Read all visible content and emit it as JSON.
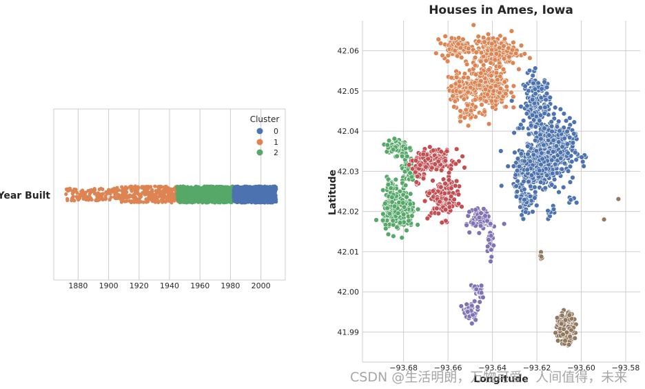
{
  "watermark": "CSDN @生活明朗，万物可爱，人间值得，未来",
  "chart_data": [
    {
      "type": "strip",
      "title": "",
      "ylabel": "Year Built",
      "xlim": [
        1864,
        2016
      ],
      "xticks": [
        1880,
        1900,
        1920,
        1940,
        1960,
        1980,
        2000
      ],
      "grid": true,
      "legend": {
        "title": "Cluster",
        "placement": "top-right",
        "entries": [
          {
            "label": "0",
            "color": "#4c72b0"
          },
          {
            "label": "1",
            "color": "#dd8452"
          },
          {
            "label": "2",
            "color": "#55a868"
          }
        ]
      },
      "series": [
        {
          "cluster": "1",
          "color": "#dd8452",
          "range": [
            1872,
            1950
          ],
          "approx_count": 420
        },
        {
          "cluster": "2",
          "color": "#55a868",
          "range": [
            1945,
            1982
          ],
          "approx_count": 700
        },
        {
          "cluster": "0",
          "color": "#4c72b0",
          "range": [
            1982,
            2010
          ],
          "approx_count": 760
        }
      ]
    },
    {
      "type": "scatter",
      "title": "Houses in Ames, Iowa",
      "xlabel": "Longitude",
      "ylabel": "Latitude",
      "xlim": [
        -93.6985,
        -93.5735
      ],
      "ylim": [
        41.9825,
        42.0675
      ],
      "xticks": [
        -93.68,
        -93.66,
        -93.64,
        -93.62,
        -93.6,
        -93.58
      ],
      "xtick_labels": [
        "−93.68",
        "−93.66",
        "−93.64",
        "−93.62",
        "−93.60",
        "−93.58"
      ],
      "yticks": [
        41.99,
        42.0,
        42.01,
        42.02,
        42.03,
        42.04,
        42.05,
        42.06
      ],
      "ytick_labels": [
        "41.99",
        "42.00",
        "42.01",
        "42.02",
        "42.03",
        "42.04",
        "42.05",
        "42.06"
      ],
      "grid": true,
      "clusters": [
        {
          "color": "#4c72b0",
          "blobs": [
            [
              -93.62,
              42.047,
              0.005,
              0.006,
              160
            ],
            [
              -93.614,
              42.035,
              0.009,
              0.006,
              420
            ],
            [
              -93.622,
              42.03,
              0.007,
              0.004,
              200
            ],
            [
              -93.625,
              42.023,
              0.003,
              0.003,
              60
            ],
            [
              -93.614,
              42.02,
              0.002,
              0.0015,
              10
            ],
            [
              -93.604,
              42.0226,
              0.002,
              0.0008,
              5
            ]
          ]
        },
        {
          "color": "#dd8452",
          "blobs": [
            [
              -93.657,
              42.061,
              0.005,
              0.002,
              90
            ],
            [
              -93.639,
              42.06,
              0.008,
              0.003,
              220
            ],
            [
              -93.642,
              42.051,
              0.008,
              0.005,
              260
            ],
            [
              -93.655,
              42.051,
              0.004,
              0.003,
              70
            ],
            [
              -93.652,
              42.045,
              0.003,
              0.002,
              40
            ]
          ]
        },
        {
          "color": "#55a868",
          "blobs": [
            [
              -93.683,
              42.036,
              0.004,
              0.002,
              70
            ],
            [
              -93.678,
              42.03,
              0.003,
              0.003,
              40
            ],
            [
              -93.682,
              42.02,
              0.006,
              0.004,
              200
            ],
            [
              -93.686,
              42.025,
              0.002,
              0.003,
              40
            ]
          ]
        },
        {
          "color": "#c44e52",
          "blobs": [
            [
              -93.666,
              42.033,
              0.007,
              0.002,
              140
            ],
            [
              -93.662,
              42.023,
              0.005,
              0.004,
              160
            ],
            [
              -93.673,
              42.03,
              0.003,
              0.003,
              40
            ]
          ]
        },
        {
          "color": "#8172b3",
          "blobs": [
            [
              -93.645,
              42.018,
              0.004,
              0.002,
              110
            ],
            [
              -93.641,
              42.012,
              0.001,
              0.003,
              40
            ],
            [
              -93.65,
              41.995,
              0.003,
              0.002,
              40
            ],
            [
              -93.647,
              42.0,
              0.002,
              0.002,
              25
            ]
          ]
        },
        {
          "color": "#937860",
          "blobs": [
            [
              -93.607,
              41.991,
              0.003,
              0.003,
              190
            ],
            [
              -93.618,
              42.009,
              0.0005,
              0.0008,
              6
            ],
            [
              -93.59,
              42.018,
              0.0003,
              0.0003,
              1
            ],
            [
              -93.583,
              42.023,
              0.0003,
              0.0003,
              1
            ]
          ]
        }
      ]
    }
  ]
}
